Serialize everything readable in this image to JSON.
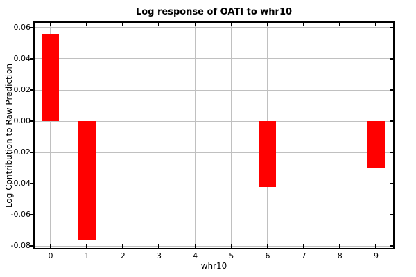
{
  "figure": {
    "title": "Log response of OATI to whr10",
    "xlabel": "whr10",
    "ylabel": "Log Contribution to Raw Prediction"
  },
  "chart_data": {
    "type": "bar",
    "title": "Log response of OATI to whr10",
    "xlabel": "whr10",
    "ylabel": "Log Contribution to Raw Prediction",
    "x": [
      0,
      1,
      6,
      9
    ],
    "values": [
      0.056,
      -0.076,
      -0.042,
      -0.03
    ],
    "bar_width": 0.48,
    "xlim": [
      -0.44,
      9.47
    ],
    "ylim": [
      -0.0813,
      0.0631
    ],
    "xticks": [
      0,
      1,
      2,
      3,
      4,
      5,
      6,
      7,
      8,
      9
    ],
    "xtick_labels": [
      "0",
      "1",
      "2",
      "3",
      "4",
      "5",
      "6",
      "7",
      "8",
      "9"
    ],
    "yticks": [
      0.06,
      0.04,
      0.02,
      0.0,
      -0.02,
      -0.04,
      -0.06,
      -0.08
    ],
    "ytick_labels": [
      "0.06",
      "0.04",
      "0.02",
      "0.00",
      "-0.02",
      "-0.04",
      "-0.06",
      "-0.08"
    ],
    "grid": true,
    "legend_position": "none",
    "colors": {
      "bar": "#ff0000",
      "grid": "#c0c0c0",
      "axis": "#000000",
      "background": "#ffffff",
      "text": "#000000"
    }
  }
}
